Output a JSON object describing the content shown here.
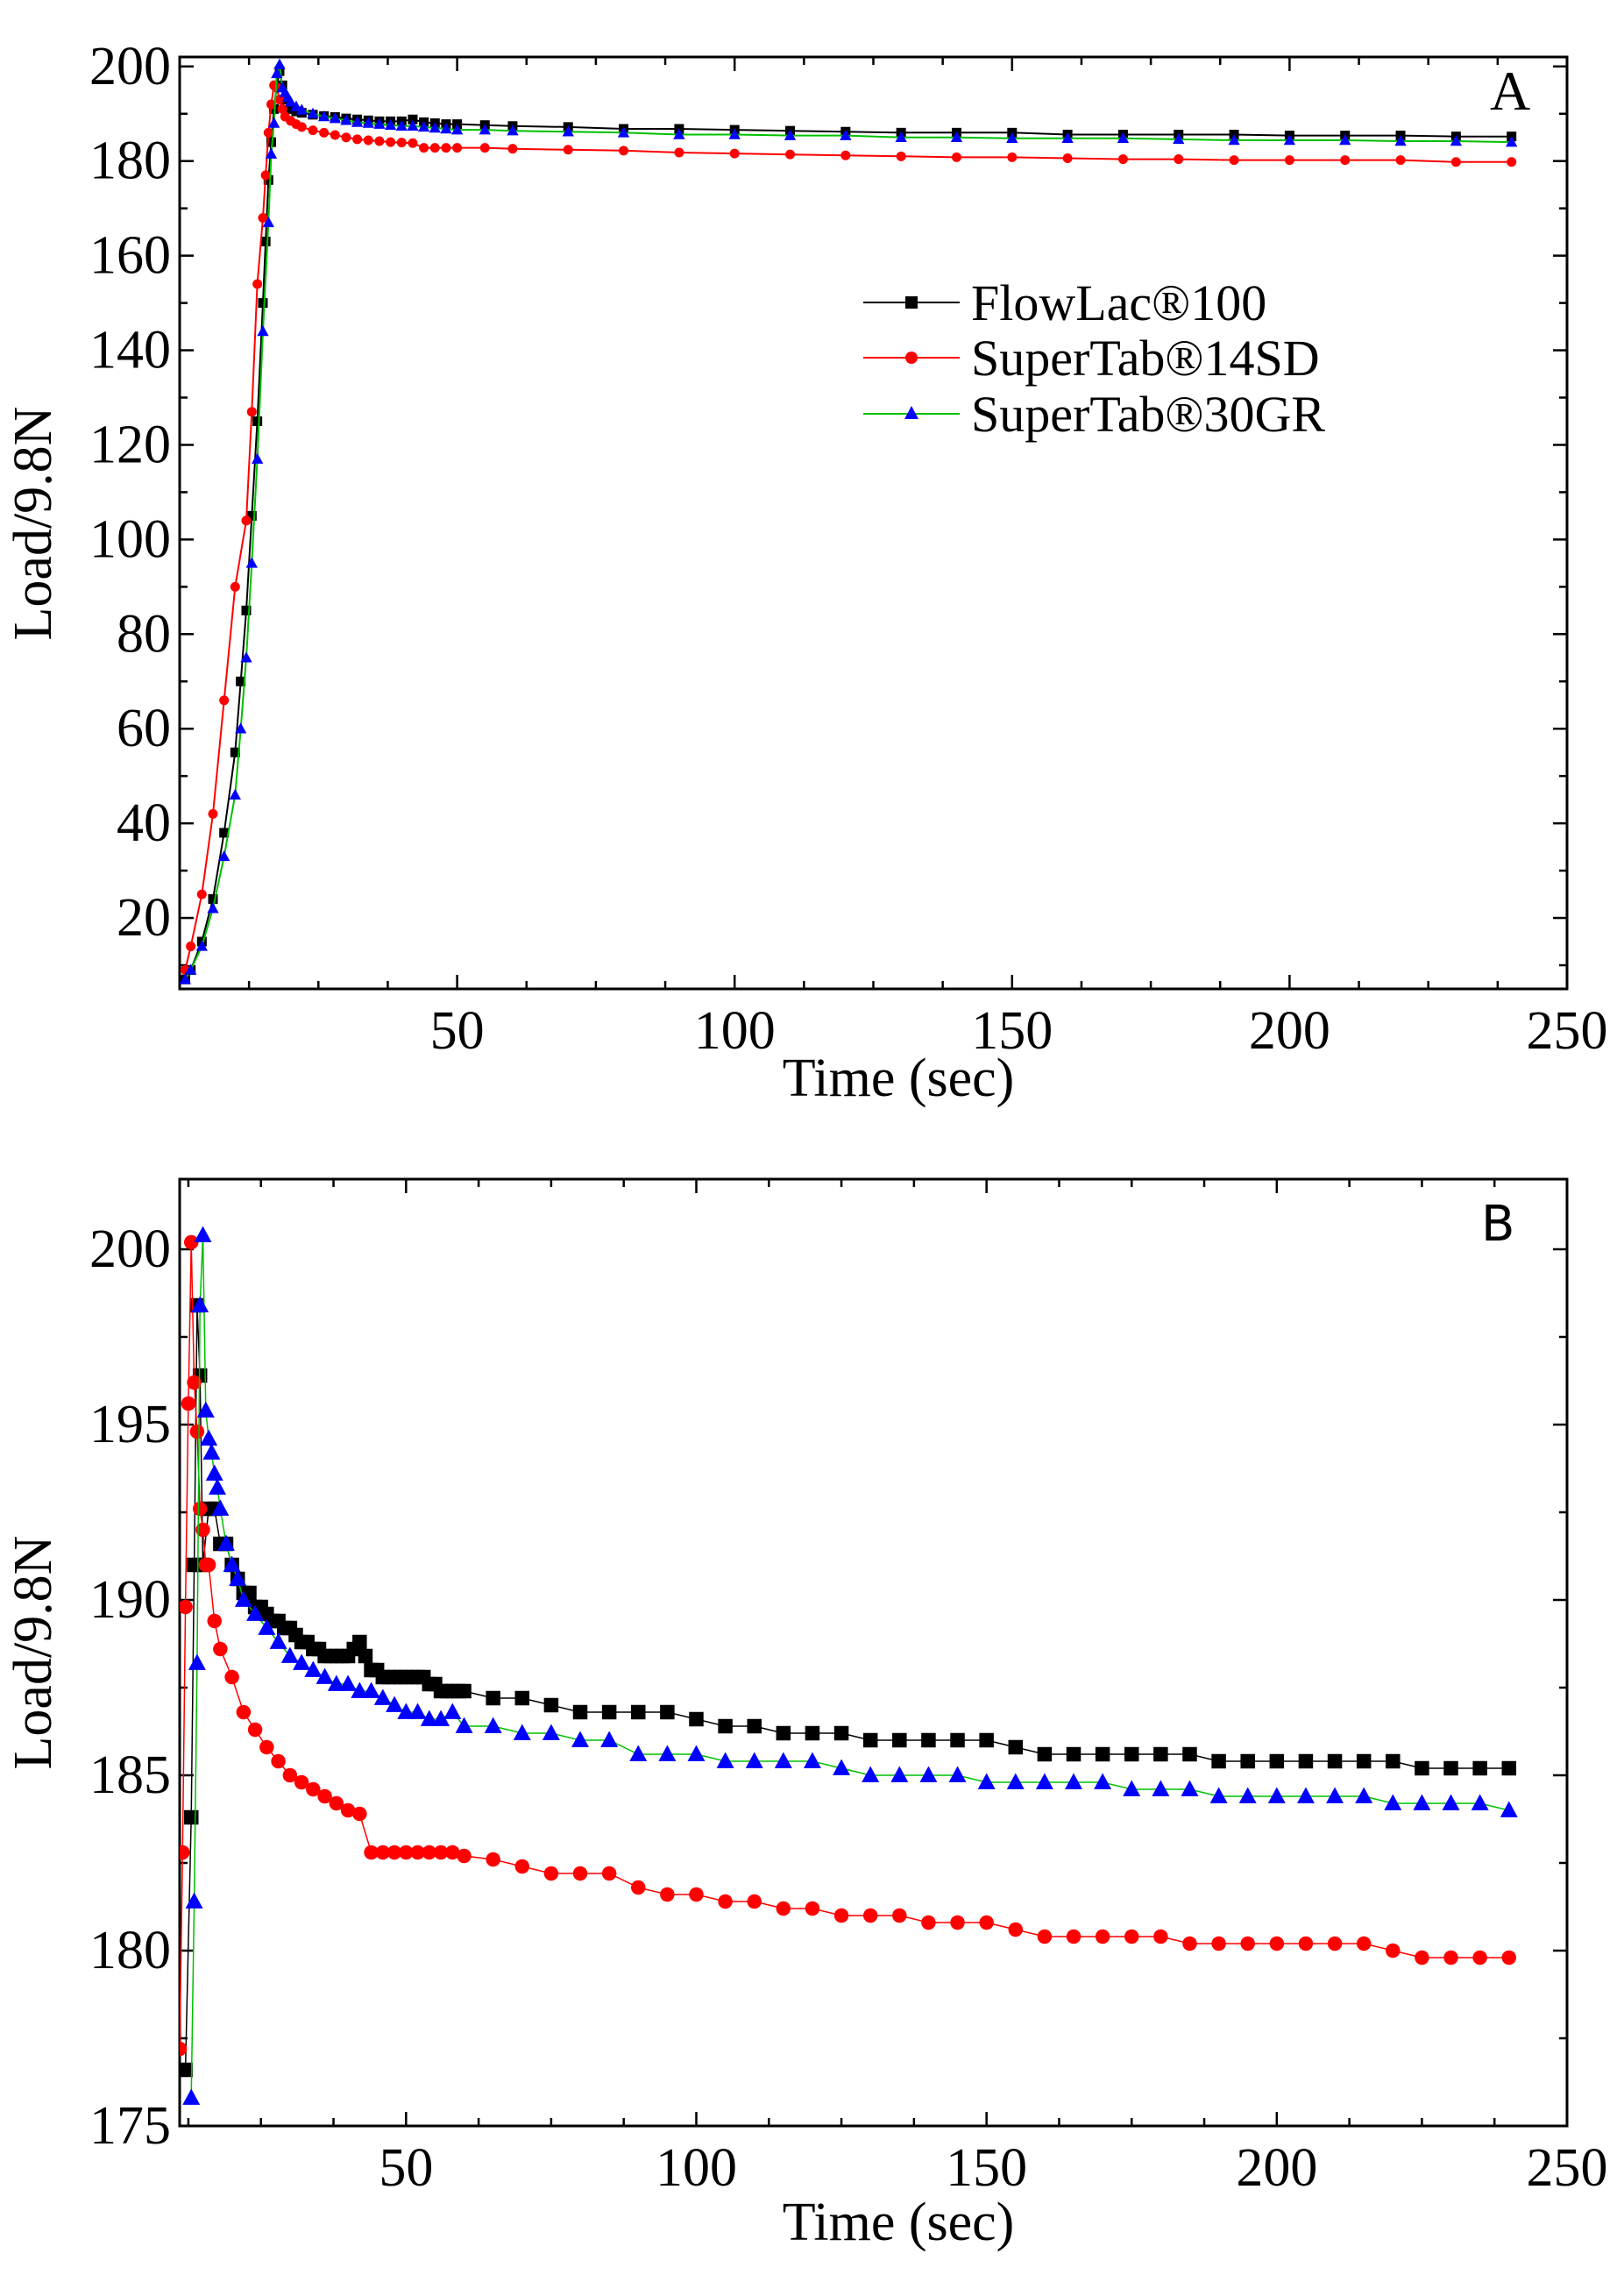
{
  "colors": {
    "FlowLac": "#000000",
    "SuperTab14SD": "#ff0000",
    "SuperTab30GR": "#0000ff",
    "SuperTab30GR_line": "#00c000"
  },
  "chart_data": [
    {
      "type": "line",
      "panel": "A",
      "xlabel": "Time (sec)",
      "ylabel": "Load/9.8N",
      "xlim": [
        0,
        250
      ],
      "ylim": [
        5,
        202
      ],
      "xticks": [
        50,
        100,
        150,
        200,
        250
      ],
      "yticks": [
        20,
        40,
        60,
        80,
        100,
        120,
        140,
        160,
        180,
        200
      ],
      "legend": {
        "placement": "center-right",
        "entries": [
          "FlowLac®100",
          "SuperTab®14SD",
          "SuperTab®30GR"
        ]
      },
      "series": [
        {
          "name": "FlowLac®100",
          "color_key": "FlowLac",
          "marker": "square",
          "x": [
            1,
            2,
            4,
            6,
            8,
            10,
            11,
            12,
            13,
            14,
            15,
            15.5,
            16,
            16.5,
            17,
            17.5,
            18,
            18.5,
            19,
            20,
            21,
            22,
            24,
            26,
            28,
            30,
            32,
            34,
            36,
            38,
            40,
            42,
            44,
            46,
            48,
            50,
            55,
            60,
            70,
            80,
            90,
            100,
            110,
            120,
            130,
            140,
            150,
            160,
            170,
            180,
            190,
            200,
            210,
            220,
            230,
            240
          ],
          "y": [
            7,
            9,
            15,
            24,
            38,
            55,
            70,
            85,
            105,
            125,
            150,
            163,
            176,
            184,
            191,
            196,
            199,
            196,
            193,
            191,
            190.5,
            190.2,
            189.8,
            189.5,
            189.3,
            189,
            188.8,
            188.6,
            188.4,
            188.4,
            188.4,
            188.8,
            188.2,
            188,
            187.8,
            187.8,
            187.6,
            187.4,
            187.2,
            186.8,
            186.8,
            186.6,
            186.4,
            186.2,
            186,
            186,
            186,
            185.6,
            185.6,
            185.6,
            185.6,
            185.4,
            185.4,
            185.4,
            185.2,
            185.2
          ]
        },
        {
          "name": "SuperTab®14SD",
          "color_key": "SuperTab14SD",
          "marker": "circle",
          "x": [
            1,
            2,
            4,
            6,
            8,
            10,
            12,
            13,
            14,
            15,
            15.5,
            16,
            16.5,
            17,
            17.5,
            18,
            18.5,
            19,
            20,
            21,
            22,
            24,
            26,
            28,
            30,
            32,
            34,
            36,
            38,
            40,
            42,
            44,
            46,
            48,
            50,
            55,
            60,
            70,
            80,
            90,
            100,
            110,
            120,
            130,
            140,
            150,
            160,
            170,
            180,
            190,
            200,
            210,
            220,
            230,
            240
          ],
          "y": [
            9,
            14,
            25,
            42,
            66,
            90,
            104,
            127,
            154,
            168,
            177,
            186,
            192,
            196,
            195.5,
            193,
            191,
            189.4,
            188.5,
            187.8,
            187.2,
            186.5,
            186,
            185.5,
            185,
            184.6,
            184.4,
            184.2,
            184,
            183.9,
            183.8,
            182.8,
            182.8,
            182.8,
            182.8,
            182.8,
            182.6,
            182.4,
            182.2,
            181.8,
            181.6,
            181.4,
            181.2,
            181,
            180.8,
            180.8,
            180.6,
            180.4,
            180.4,
            180.2,
            180.2,
            180.2,
            180.2,
            179.8,
            179.8
          ]
        },
        {
          "name": "SuperTab®30GR",
          "color_key": "SuperTab30GR",
          "marker": "triangle",
          "x": [
            1,
            2,
            4,
            6,
            8,
            10,
            11,
            12,
            13,
            14,
            15,
            16,
            16.5,
            17,
            17.5,
            18,
            18.5,
            19,
            19.5,
            20,
            21,
            22,
            24,
            26,
            28,
            30,
            32,
            34,
            36,
            38,
            40,
            42,
            44,
            46,
            48,
            50,
            55,
            60,
            70,
            80,
            90,
            100,
            110,
            120,
            130,
            140,
            150,
            160,
            170,
            180,
            190,
            200,
            210,
            220,
            230,
            240
          ],
          "y": [
            7,
            9,
            14,
            22,
            33,
            46,
            60,
            75,
            95,
            117,
            144,
            167,
            181.5,
            188,
            198.5,
            200.4,
            195.5,
            194.5,
            193.5,
            192.5,
            191.5,
            190.8,
            190,
            189.4,
            189,
            188.6,
            188.2,
            188,
            187.8,
            187.6,
            187.4,
            187.4,
            187.2,
            187,
            186.8,
            186.6,
            186.6,
            186.4,
            186.2,
            186,
            185.6,
            185.6,
            185.4,
            185.4,
            185,
            185,
            184.8,
            184.8,
            184.8,
            184.6,
            184.4,
            184.4,
            184.4,
            184.2,
            184.2,
            184
          ]
        }
      ]
    },
    {
      "type": "line",
      "panel": "B",
      "xlabel": "Time (sec)",
      "ylabel": "Load/9.8N",
      "xlim": [
        11,
        250
      ],
      "ylim": [
        175,
        202
      ],
      "xticks": [
        50,
        100,
        150,
        200,
        250
      ],
      "yticks": [
        175,
        180,
        185,
        190,
        195,
        200
      ],
      "series": [
        {
          "name": "FlowLac®100",
          "color_key": "FlowLac",
          "marker": "square",
          "x": [
            12,
            13,
            13.5,
            14,
            14.5,
            15,
            16,
            17,
            18,
            19,
            20,
            21,
            22,
            23,
            24,
            25,
            26,
            27,
            28,
            29,
            30,
            31,
            32,
            33,
            34,
            35,
            36,
            37,
            38,
            39,
            40,
            41,
            42,
            43,
            44,
            45,
            46,
            47,
            48,
            49,
            50,
            51,
            52,
            53,
            54,
            55,
            56,
            57,
            58,
            59,
            60,
            65,
            70,
            75,
            80,
            85,
            90,
            95,
            100,
            105,
            110,
            115,
            120,
            125,
            130,
            135,
            140,
            145,
            150,
            155,
            160,
            165,
            170,
            175,
            180,
            185,
            190,
            195,
            200,
            205,
            210,
            215,
            220,
            225,
            230,
            235,
            240
          ],
          "y": [
            176.6,
            183.8,
            191,
            198.4,
            196.4,
            191,
            192.6,
            192.6,
            191.6,
            191.6,
            191,
            190.6,
            190.2,
            190.2,
            189.8,
            189.8,
            189.6,
            189.4,
            189.4,
            189.2,
            189.2,
            189,
            188.8,
            188.8,
            188.6,
            188.6,
            188.4,
            188.4,
            188.4,
            188.4,
            188.4,
            188.6,
            188.8,
            188.4,
            188,
            188,
            187.8,
            187.8,
            187.8,
            187.8,
            187.8,
            187.8,
            187.8,
            187.8,
            187.6,
            187.6,
            187.4,
            187.4,
            187.4,
            187.4,
            187.4,
            187.2,
            187.2,
            187,
            186.8,
            186.8,
            186.8,
            186.8,
            186.6,
            186.4,
            186.4,
            186.2,
            186.2,
            186.2,
            186,
            186,
            186,
            186,
            186,
            185.8,
            185.6,
            185.6,
            185.6,
            185.6,
            185.6,
            185.6,
            185.4,
            185.4,
            185.4,
            185.4,
            185.4,
            185.4,
            185.4,
            185.2,
            185.2,
            185.2,
            185.2
          ]
        },
        {
          "name": "SuperTab®14SD",
          "color_key": "SuperTab14SD",
          "marker": "circle",
          "x": [
            11,
            11.5,
            12,
            12.5,
            13,
            13.5,
            14,
            14.5,
            15,
            15.5,
            16,
            17,
            18,
            20,
            22,
            24,
            26,
            28,
            30,
            32,
            34,
            36,
            38,
            40,
            42,
            44,
            46,
            48,
            50,
            52,
            54,
            56,
            58,
            60,
            65,
            70,
            75,
            80,
            85,
            90,
            95,
            100,
            105,
            110,
            115,
            120,
            125,
            130,
            135,
            140,
            145,
            150,
            155,
            160,
            165,
            170,
            175,
            180,
            185,
            190,
            195,
            200,
            205,
            210,
            215,
            220,
            225,
            230,
            235,
            240
          ],
          "y": [
            177.2,
            182.8,
            189.8,
            195.6,
            200.2,
            196.2,
            194.8,
            192.6,
            192,
            191,
            191,
            189.4,
            188.6,
            187.8,
            186.8,
            186.3,
            185.8,
            185.4,
            185,
            184.8,
            184.6,
            184.4,
            184.2,
            184,
            183.9,
            182.8,
            182.8,
            182.8,
            182.8,
            182.8,
            182.8,
            182.8,
            182.8,
            182.7,
            182.6,
            182.4,
            182.2,
            182.2,
            182.2,
            181.8,
            181.6,
            181.6,
            181.4,
            181.4,
            181.2,
            181.2,
            181,
            181,
            181,
            180.8,
            180.8,
            180.8,
            180.6,
            180.4,
            180.4,
            180.4,
            180.4,
            180.4,
            180.2,
            180.2,
            180.2,
            180.2,
            180.2,
            180.2,
            180.2,
            180,
            179.8,
            179.8,
            179.8,
            179.8
          ]
        },
        {
          "name": "SuperTab®30GR",
          "color_key": "SuperTab30GR",
          "marker": "triangle",
          "x": [
            13,
            13.5,
            14,
            14.5,
            15,
            15.5,
            16,
            16.5,
            17,
            17.5,
            18,
            19,
            20,
            21,
            22,
            24,
            26,
            28,
            30,
            32,
            34,
            36,
            38,
            40,
            42,
            44,
            46,
            48,
            50,
            52,
            54,
            56,
            58,
            60,
            65,
            70,
            75,
            80,
            85,
            90,
            95,
            100,
            105,
            110,
            115,
            120,
            125,
            130,
            135,
            140,
            145,
            150,
            155,
            160,
            165,
            170,
            175,
            180,
            185,
            190,
            195,
            200,
            205,
            210,
            215,
            220,
            225,
            230,
            235,
            240
          ],
          "y": [
            175.8,
            181.4,
            188.2,
            198.4,
            200.4,
            195.4,
            194.6,
            194.2,
            193.6,
            193.2,
            192.6,
            191.6,
            191,
            190.6,
            190,
            189.6,
            189.2,
            188.8,
            188.4,
            188.2,
            188,
            187.8,
            187.6,
            187.6,
            187.4,
            187.4,
            187.2,
            187,
            186.8,
            186.8,
            186.6,
            186.6,
            186.8,
            186.4,
            186.4,
            186.2,
            186.2,
            186,
            186,
            185.6,
            185.6,
            185.6,
            185.4,
            185.4,
            185.4,
            185.4,
            185.2,
            185,
            185,
            185,
            185,
            184.8,
            184.8,
            184.8,
            184.8,
            184.8,
            184.6,
            184.6,
            184.6,
            184.4,
            184.4,
            184.4,
            184.4,
            184.4,
            184.4,
            184.2,
            184.2,
            184.2,
            184.2,
            184
          ]
        }
      ]
    }
  ]
}
